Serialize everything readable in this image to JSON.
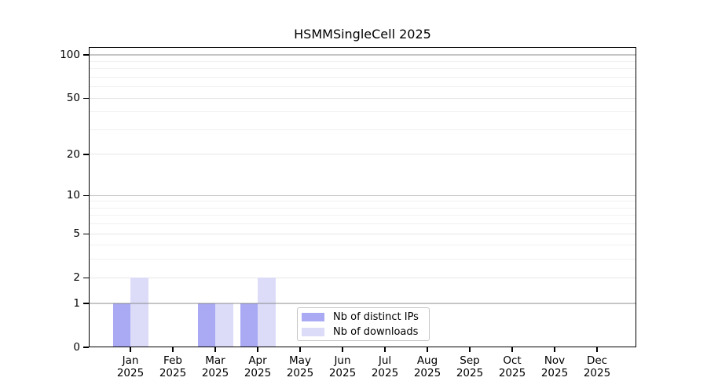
{
  "chart_data": {
    "type": "bar",
    "title": "HSMMSingleCell 2025",
    "categories": [
      "Jan",
      "Feb",
      "Mar",
      "Apr",
      "May",
      "Jun",
      "Jul",
      "Aug",
      "Sep",
      "Oct",
      "Nov",
      "Dec"
    ],
    "year": "2025",
    "series": [
      {
        "name": "Nb of distinct IPs",
        "color": "#a9a9f4",
        "values": [
          1,
          0,
          1,
          1,
          0,
          0,
          0,
          0,
          0,
          0,
          0,
          0
        ]
      },
      {
        "name": "Nb of downloads",
        "color": "#dcdcf9",
        "values": [
          2,
          0,
          1,
          2,
          0,
          0,
          0,
          0,
          0,
          0,
          0,
          0
        ]
      }
    ],
    "y_scale": "log10(1+y)",
    "y_axis_ticks": [
      0,
      1,
      2,
      5,
      10,
      20,
      50,
      100
    ],
    "y_gridlines": {
      "decade": [
        1,
        10,
        100
      ],
      "intermediate": [
        2,
        5,
        20,
        50
      ],
      "minor": [
        3,
        4,
        6,
        7,
        8,
        9,
        30,
        40,
        60,
        70,
        80,
        90
      ]
    },
    "ylim": [
      0,
      113
    ],
    "grid": "horizontal",
    "legend_position": "inside-bottom-center"
  },
  "colors": {
    "background": "#ffffff",
    "axis": "#000000",
    "text": "#000000",
    "grid_decade": "rgba(118,118,118,0.42)",
    "grid_intermediate": "#e6e6e6",
    "grid_minor": "#f0f0f0",
    "legend_border": "#c4c4c4"
  }
}
